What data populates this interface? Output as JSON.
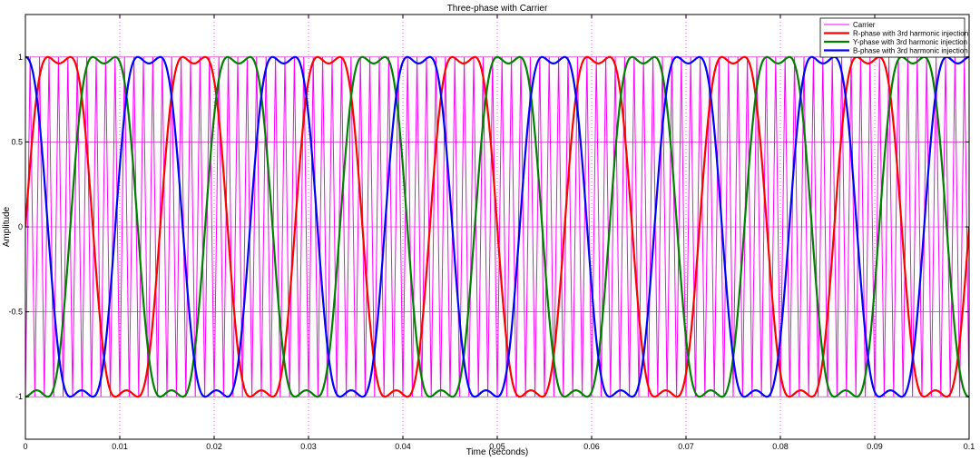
{
  "chart_data": {
    "type": "line",
    "title": "Three-phase with Carrier",
    "xlabel": "Time (seconds)",
    "ylabel": "Amplitude",
    "xlim": [
      0,
      0.1
    ],
    "ylim": [
      -1.25,
      1.25
    ],
    "x_ticks": [
      0,
      0.01,
      0.02,
      0.03,
      0.04,
      0.05,
      0.06,
      0.07,
      0.08,
      0.09,
      0.1
    ],
    "x_tick_labels": [
      "0",
      "0.01",
      "0.02",
      "0.03",
      "0.04",
      "0.05",
      "0.06",
      "0.07",
      "0.08",
      "0.09",
      "0.1"
    ],
    "y_ticks": [
      1,
      0.5,
      0,
      -0.5,
      -1
    ],
    "y_tick_labels": [
      "1",
      "0.5",
      "0",
      "-0.5",
      "-1"
    ],
    "grid": true,
    "legend_position": "top-right",
    "modulating_frequency_hz": 70,
    "carrier_frequency_hz": 1000,
    "third_harmonic_fraction": 0.1667,
    "series": [
      {
        "name": "Carrier",
        "kind": "triangle",
        "amplitude": 1,
        "color": "#ff00ff"
      },
      {
        "name": "R-phase with 3rd harmonic injection",
        "kind": "sine3h",
        "phase_deg": 0,
        "color": "#ff0000"
      },
      {
        "name": "Y-phase with 3rd harmonic injection",
        "kind": "sine3h",
        "phase_deg": -120,
        "color": "#008000"
      },
      {
        "name": "B-phase with 3rd harmonic injection",
        "kind": "sine3h",
        "phase_deg": 120,
        "color": "#0000ff"
      }
    ]
  }
}
